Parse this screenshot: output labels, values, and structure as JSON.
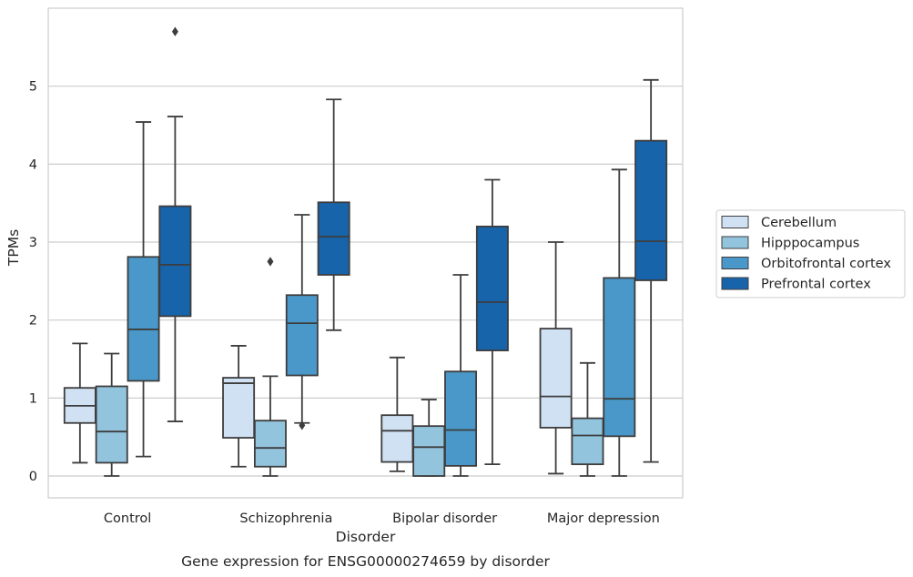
{
  "chart_data": {
    "type": "box",
    "caption": "Gene expression for ENSG00000274659 by disorder",
    "xlabel": "Disorder",
    "ylabel": "TPMs",
    "ylim": [
      -0.28,
      6.0
    ],
    "yticks": [
      0,
      1,
      2,
      3,
      4,
      5
    ],
    "grid": "horizontal",
    "legend_position": "right",
    "categories": [
      "Control",
      "Schizophrenia",
      "Bipolar disorder",
      "Major depression"
    ],
    "series": [
      {
        "name": "Cerebellum",
        "color": "#cfe1f2",
        "boxes": [
          {
            "whisker_low": 0.17,
            "q1": 0.68,
            "median": 0.9,
            "q3": 1.13,
            "whisker_high": 1.7,
            "outliers": []
          },
          {
            "whisker_low": 0.12,
            "q1": 0.49,
            "median": 1.19,
            "q3": 1.26,
            "whisker_high": 1.67,
            "outliers": []
          },
          {
            "whisker_low": 0.06,
            "q1": 0.18,
            "median": 0.58,
            "q3": 0.78,
            "whisker_high": 1.52,
            "outliers": []
          },
          {
            "whisker_low": 0.03,
            "q1": 0.62,
            "median": 1.02,
            "q3": 1.89,
            "whisker_high": 3.0,
            "outliers": []
          }
        ]
      },
      {
        "name": "Hipppocampus",
        "color": "#93c4de",
        "boxes": [
          {
            "whisker_low": 0.0,
            "q1": 0.17,
            "median": 0.57,
            "q3": 1.15,
            "whisker_high": 1.57,
            "outliers": []
          },
          {
            "whisker_low": 0.0,
            "q1": 0.12,
            "median": 0.36,
            "q3": 0.71,
            "whisker_high": 1.28,
            "outliers": [
              2.75
            ]
          },
          {
            "whisker_low": 0.0,
            "q1": 0.0,
            "median": 0.37,
            "q3": 0.64,
            "whisker_high": 0.98,
            "outliers": []
          },
          {
            "whisker_low": 0.0,
            "q1": 0.15,
            "median": 0.52,
            "q3": 0.74,
            "whisker_high": 1.45,
            "outliers": []
          }
        ]
      },
      {
        "name": "Orbitofrontal cortex",
        "color": "#4a98c9",
        "boxes": [
          {
            "whisker_low": 0.25,
            "q1": 1.22,
            "median": 1.88,
            "q3": 2.81,
            "whisker_high": 4.54,
            "outliers": []
          },
          {
            "whisker_low": 0.68,
            "q1": 1.29,
            "median": 1.96,
            "q3": 2.32,
            "whisker_high": 3.35,
            "outliers": [
              0.65
            ]
          },
          {
            "whisker_low": 0.0,
            "q1": 0.13,
            "median": 0.59,
            "q3": 1.34,
            "whisker_high": 2.58,
            "outliers": []
          },
          {
            "whisker_low": 0.0,
            "q1": 0.51,
            "median": 0.99,
            "q3": 2.54,
            "whisker_high": 3.93,
            "outliers": []
          }
        ]
      },
      {
        "name": "Prefrontal cortex",
        "color": "#1764ab",
        "boxes": [
          {
            "whisker_low": 0.7,
            "q1": 2.05,
            "median": 2.71,
            "q3": 3.46,
            "whisker_high": 4.61,
            "outliers": [
              5.7
            ]
          },
          {
            "whisker_low": 1.87,
            "q1": 2.58,
            "median": 3.07,
            "q3": 3.51,
            "whisker_high": 4.83,
            "outliers": []
          },
          {
            "whisker_low": 0.15,
            "q1": 1.61,
            "median": 2.23,
            "q3": 3.2,
            "whisker_high": 3.8,
            "outliers": []
          },
          {
            "whisker_low": 0.18,
            "q1": 2.51,
            "median": 3.01,
            "q3": 4.3,
            "whisker_high": 5.08,
            "outliers": []
          }
        ]
      }
    ]
  }
}
